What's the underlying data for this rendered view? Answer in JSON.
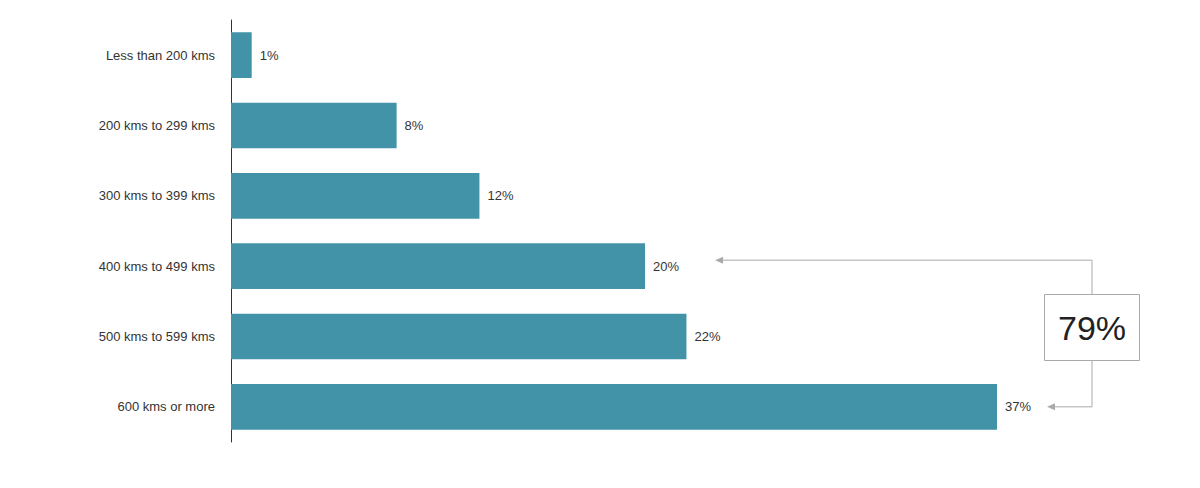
{
  "chart_data": {
    "type": "bar",
    "orientation": "horizontal",
    "categories": [
      "Less than 200 kms",
      "200 kms to 299 kms",
      "300 kms to 399 kms",
      "400 kms to 499 kms",
      "500 kms to 599 kms",
      "600 kms or more"
    ],
    "values": [
      1,
      8,
      12,
      20,
      22,
      37
    ],
    "value_labels": [
      "1%",
      "8%",
      "12%",
      "20%",
      "22%",
      "37%"
    ],
    "color": "#4393a8",
    "xlim": [
      0,
      37
    ],
    "grid": false,
    "data_labels": true,
    "tick_labels": "y",
    "annotation": {
      "text": "79%",
      "span": [
        "400 kms to 499 kms",
        "600 kms or more"
      ]
    }
  }
}
